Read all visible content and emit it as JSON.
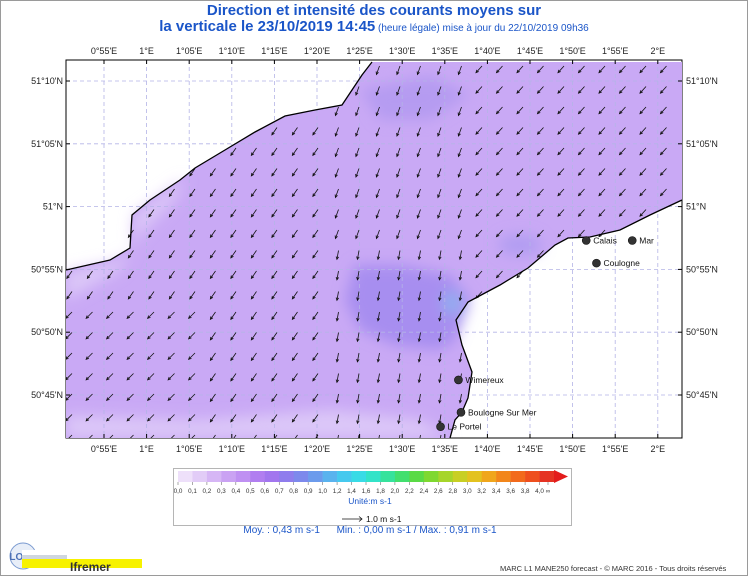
{
  "title": {
    "line1": "Direction et intensité des courants moyens sur",
    "line2": "la verticale le 23/10/2019 14:45",
    "line2_small": " (heure légale) mise à jour du 22/10/2019 09h36"
  },
  "axes": {
    "lon_ticks": [
      "0°55'E",
      "1°E",
      "1°05'E",
      "1°10'E",
      "1°15'E",
      "1°20'E",
      "1°25'E",
      "1°30'E",
      "1°35'E",
      "1°40'E",
      "1°45'E",
      "1°50'E",
      "1°55'E",
      "2°E"
    ],
    "lat_ticks": [
      "51°10'N",
      "51°05'N",
      "51°N",
      "50°55'N",
      "50°50'N",
      "50°45'N"
    ]
  },
  "places": [
    {
      "name": "Calais",
      "lon": 1.86,
      "lat": 50.955
    },
    {
      "name": "Mar",
      "lon": 1.95,
      "lat": 50.955
    },
    {
      "name": "Coulogne",
      "lon": 1.88,
      "lat": 50.925
    },
    {
      "name": "Wimereux",
      "lon": 1.61,
      "lat": 50.77
    },
    {
      "name": "Boulogne Sur Mer",
      "lon": 1.615,
      "lat": 50.727
    },
    {
      "name": "Le Portel",
      "lon": 1.575,
      "lat": 50.708
    }
  ],
  "legend": {
    "ticks": [
      "0,0",
      "0,1",
      "0,2",
      "0,3",
      "0,4",
      "0,5",
      "0,6",
      "0,7",
      "0,8",
      "0,9",
      "1,0",
      "1,2",
      "1,4",
      "1,6",
      "1,8",
      "2,0",
      "2,2",
      "2,4",
      "2,6",
      "2,8",
      "3,0",
      "3,2",
      "3,4",
      "3,6",
      "3,8",
      "4,0",
      "∞"
    ],
    "colors": [
      "#eee0fa",
      "#e2ccf7",
      "#d6b6f5",
      "#caa2f3",
      "#bf90f2",
      "#b17ef0",
      "#a276ee",
      "#8f7ded",
      "#7d89ec",
      "#6c9bec",
      "#5ab3ee",
      "#46c9ee",
      "#39dbe6",
      "#33e3c8",
      "#36e29c",
      "#42df6e",
      "#5ada45",
      "#7fd830",
      "#a6d52a",
      "#c8cf24",
      "#e3c21f",
      "#f0a61c",
      "#f2861b",
      "#f26a1c",
      "#ee4f1e",
      "#e53323"
    ],
    "unit": "Unité:m s-1",
    "ref_arrow": "1.0 m s-1"
  },
  "stats": {
    "moy": "Moy. : 0,43 m s-1",
    "minmax": "Min. : 0,00 m s-1 / Max. : 0,91 m s-1"
  },
  "logos": {
    "lops": "LOPS",
    "ifremer": "Ifremer"
  },
  "credit": "MARC L1 MANE250 forecast - © MARC 2016 - Tous droits réservés",
  "colors": {
    "title": "#1a55c8",
    "land": "#ffffff",
    "coast": "#000000",
    "grid": "#b4b4e6"
  }
}
